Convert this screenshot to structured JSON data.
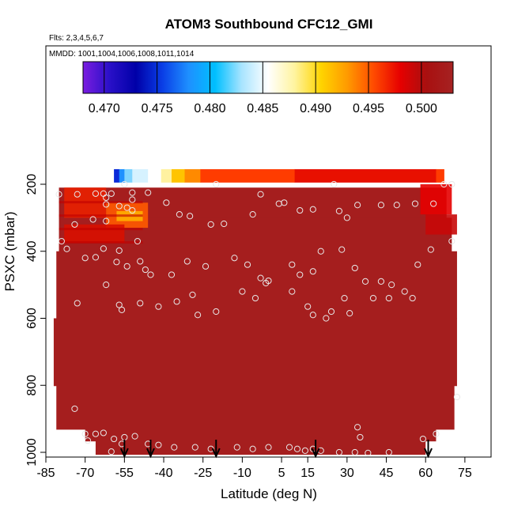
{
  "chart_data": {
    "type": "heatmap",
    "title": "ATOM3 Southbound CFC12_GMI",
    "subtitle_flights": "Flts: 2,3,4,5,6,7",
    "subtitle_dates": "MMDD: 1001,1004,1006,1008,1011,1014",
    "xlabel": "Latitude (deg N)",
    "ylabel": "PSXC (mbar)",
    "xlim": [
      -85,
      85
    ],
    "ylim": [
      1000,
      0
    ],
    "xticks": [
      -85,
      -70,
      -55,
      -40,
      -25,
      -10,
      5,
      15,
      30,
      45,
      60,
      75
    ],
    "yticks": [
      200,
      400,
      600,
      800,
      1000
    ],
    "colorbar": {
      "range": [
        0.468,
        0.503
      ],
      "ticks": [
        "0.470",
        "0.475",
        "0.480",
        "0.485",
        "0.490",
        "0.495",
        "0.500"
      ],
      "colors": [
        "#7a1de0",
        "#2a10c8",
        "#0000a8",
        "#0a3ee6",
        "#1e90ff",
        "#00bfff",
        "#a8e4ff",
        "#ffffff",
        "#fff4a0",
        "#ffd400",
        "#ff9a00",
        "#ff4a00",
        "#e60000",
        "#a81010",
        "#a62222"
      ]
    },
    "field_color": "#a51e1e",
    "band": {
      "pressure_top": 155,
      "pressure_bottom": 195,
      "segments": [
        {
          "lat_from": -59,
          "lat_to": -57,
          "color": "#0a2ad8"
        },
        {
          "lat_from": -57,
          "lat_to": -55,
          "color": "#1e90ff"
        },
        {
          "lat_from": -55,
          "lat_to": -52,
          "color": "#7fd4ff"
        },
        {
          "lat_from": -52,
          "lat_to": -46,
          "color": "#d6f2ff"
        },
        {
          "lat_from": -46,
          "lat_to": -41,
          "color": "#ffffff"
        },
        {
          "lat_from": -41,
          "lat_to": -37,
          "color": "#fff1a0"
        },
        {
          "lat_from": -37,
          "lat_to": -32,
          "color": "#ffc400"
        },
        {
          "lat_from": -32,
          "lat_to": -26,
          "color": "#ff8a00"
        },
        {
          "lat_from": -26,
          "lat_to": 10,
          "color": "#ff3c00"
        },
        {
          "lat_from": 10,
          "lat_to": 64,
          "color": "#e81000"
        },
        {
          "lat_from": 64,
          "lat_to": 67,
          "color": "#ff3c00"
        }
      ]
    },
    "hot_patches": [
      {
        "lat_from": -78,
        "lat_to": -62,
        "p_from": 210,
        "p_to": 300,
        "color": "#e82000"
      },
      {
        "lat_from": -62,
        "lat_to": -46,
        "p_from": 255,
        "p_to": 330,
        "color": "#ff5a00"
      },
      {
        "lat_from": -58,
        "lat_to": -48,
        "p_from": 280,
        "p_to": 310,
        "color": "#ffb000"
      },
      {
        "lat_from": -78,
        "lat_to": -55,
        "p_from": 320,
        "p_to": 375,
        "color": "#d81000"
      },
      {
        "lat_from": 58,
        "lat_to": 70,
        "p_from": 200,
        "p_to": 290,
        "color": "#e60000"
      },
      {
        "lat_from": 60,
        "lat_to": 72,
        "p_from": 290,
        "p_to": 350,
        "color": "#c80808"
      }
    ],
    "profiles_latitude": [
      -55,
      -45,
      -20,
      18,
      61
    ],
    "sample_points": [
      [
        -55,
        200
      ],
      [
        -52,
        225
      ],
      [
        -46,
        225
      ],
      [
        -52,
        246
      ],
      [
        -60,
        228
      ],
      [
        -63,
        228
      ],
      [
        -66,
        228
      ],
      [
        -80,
        230
      ],
      [
        -73,
        230
      ],
      [
        -62,
        240
      ],
      [
        -62,
        260
      ],
      [
        -57,
        265
      ],
      [
        -54,
        270
      ],
      [
        -52,
        278
      ],
      [
        -39,
        255
      ],
      [
        -34,
        290
      ],
      [
        -30,
        295
      ],
      [
        -22,
        320
      ],
      [
        -17,
        318
      ],
      [
        -6,
        290
      ],
      [
        -20,
        200
      ],
      [
        -3,
        230
      ],
      [
        4,
        258
      ],
      [
        6,
        255
      ],
      [
        12,
        278
      ],
      [
        17,
        275
      ],
      [
        25,
        200
      ],
      [
        27,
        280
      ],
      [
        30,
        300
      ],
      [
        34,
        262
      ],
      [
        43,
        262
      ],
      [
        49,
        262
      ],
      [
        56,
        258
      ],
      [
        63,
        258
      ],
      [
        67,
        200
      ],
      [
        70,
        200
      ],
      [
        -62,
        310
      ],
      [
        -67,
        305
      ],
      [
        -74,
        320
      ],
      [
        -79,
        370
      ],
      [
        -77,
        393
      ],
      [
        -50,
        370
      ],
      [
        -57,
        398
      ],
      [
        -63,
        392
      ],
      [
        -66,
        418
      ],
      [
        -70,
        420
      ],
      [
        -58,
        432
      ],
      [
        -54,
        445
      ],
      [
        -49,
        430
      ],
      [
        -47,
        455
      ],
      [
        -45,
        470
      ],
      [
        -37,
        470
      ],
      [
        -31,
        430
      ],
      [
        -24,
        445
      ],
      [
        -13,
        420
      ],
      [
        -8,
        440
      ],
      [
        -3,
        480
      ],
      [
        -10,
        520
      ],
      [
        -1,
        495
      ],
      [
        0,
        488
      ],
      [
        9,
        440
      ],
      [
        12,
        470
      ],
      [
        17,
        460
      ],
      [
        20,
        400
      ],
      [
        28,
        395
      ],
      [
        33,
        450
      ],
      [
        37,
        490
      ],
      [
        40,
        540
      ],
      [
        43,
        490
      ],
      [
        47,
        500
      ],
      [
        52,
        520
      ],
      [
        57,
        440
      ],
      [
        62,
        395
      ],
      [
        70,
        370
      ],
      [
        -73,
        555
      ],
      [
        -62,
        500
      ],
      [
        -57,
        560
      ],
      [
        -56,
        575
      ],
      [
        -49,
        555
      ],
      [
        -42,
        565
      ],
      [
        -35,
        550
      ],
      [
        -29,
        530
      ],
      [
        -27,
        590
      ],
      [
        -20,
        580
      ],
      [
        -5,
        540
      ],
      [
        9,
        520
      ],
      [
        15,
        565
      ],
      [
        17,
        590
      ],
      [
        22,
        600
      ],
      [
        24,
        580
      ],
      [
        29,
        540
      ],
      [
        31,
        585
      ],
      [
        46,
        540
      ],
      [
        55,
        540
      ],
      [
        72,
        835
      ],
      [
        -74,
        870
      ],
      [
        -70,
        945
      ],
      [
        -69,
        965
      ],
      [
        -66,
        945
      ],
      [
        -63,
        942
      ],
      [
        -59,
        960
      ],
      [
        -55,
        955
      ],
      [
        -51,
        952
      ],
      [
        -46,
        975
      ],
      [
        -42,
        978
      ],
      [
        -36,
        985
      ],
      [
        -28,
        985
      ],
      [
        -22,
        990
      ],
      [
        -12,
        985
      ],
      [
        -6,
        990
      ],
      [
        0,
        985
      ],
      [
        8,
        985
      ],
      [
        11,
        990
      ],
      [
        14,
        995
      ],
      [
        17,
        990
      ],
      [
        20,
        995
      ],
      [
        27,
        1000
      ],
      [
        33,
        1000
      ],
      [
        34,
        925
      ],
      [
        35,
        955
      ],
      [
        38,
        1002
      ],
      [
        46,
        1000
      ],
      [
        59,
        960
      ],
      [
        64,
        945
      ],
      [
        -56,
        975
      ],
      [
        -60,
        998
      ]
    ]
  }
}
